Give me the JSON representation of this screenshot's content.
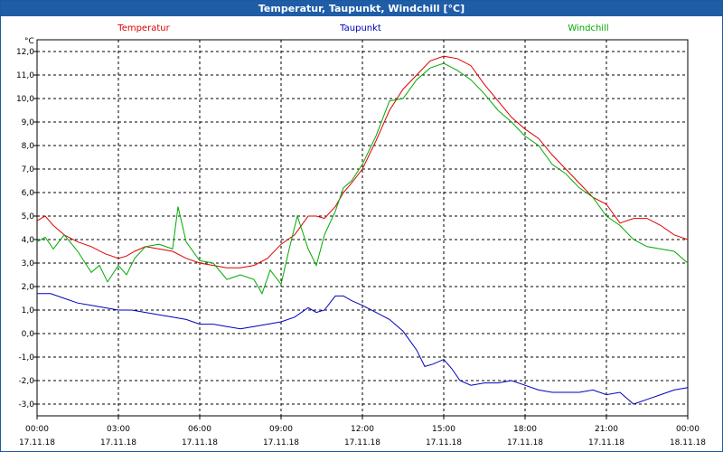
{
  "window": {
    "title": "Temperatur, Taupunkt, Windchill [°C]"
  },
  "colors": {
    "temperature": "#dd0000",
    "dewpoint": "#0000bb",
    "windchill": "#00aa00",
    "title_bg": "#1f5da6"
  },
  "chart_data": {
    "type": "line",
    "title": "Temperatur, Taupunkt, Windchill [°C]",
    "ylabel": "°C",
    "ylim": [
      -3.5,
      12.5
    ],
    "yticks": [
      "12,0",
      "11,0",
      "10,0",
      "9,0",
      "8,0",
      "7,0",
      "6,0",
      "5,0",
      "4,0",
      "3,0",
      "2,0",
      "1,0",
      "0,0",
      "-1,0",
      "-2,0",
      "-3,0"
    ],
    "xticks": [
      {
        "time": "00:00",
        "date": "17.11.18"
      },
      {
        "time": "03:00",
        "date": "17.11.18"
      },
      {
        "time": "06:00",
        "date": "17.11.18"
      },
      {
        "time": "09:00",
        "date": "17.11.18"
      },
      {
        "time": "12:00",
        "date": "17.11.18"
      },
      {
        "time": "15:00",
        "date": "17.11.18"
      },
      {
        "time": "18:00",
        "date": "17.11.18"
      },
      {
        "time": "21:00",
        "date": "17.11.18"
      },
      {
        "time": "00:00",
        "date": "18.11.18"
      }
    ],
    "grid": true,
    "legend_position": "top",
    "series": [
      {
        "name": "Temperatur",
        "color": "#dd0000",
        "x": [
          0,
          0.3,
          0.6,
          1,
          1.5,
          2,
          2.5,
          3,
          3.3,
          3.6,
          4,
          4.5,
          5,
          5.5,
          6,
          6.5,
          7,
          7.5,
          8,
          8.5,
          9,
          9.5,
          10,
          10.3,
          10.6,
          11,
          11.3,
          11.6,
          12,
          12.5,
          13,
          13.5,
          14,
          14.5,
          15,
          15.5,
          16,
          16.5,
          17,
          17.5,
          18,
          18.5,
          19,
          19.5,
          20,
          20.5,
          21,
          21.5,
          22,
          22.5,
          23,
          23.5,
          24
        ],
        "values": [
          4.8,
          5.0,
          4.6,
          4.2,
          3.9,
          3.7,
          3.4,
          3.2,
          3.3,
          3.5,
          3.7,
          3.6,
          3.5,
          3.2,
          3.0,
          2.9,
          2.8,
          2.8,
          2.9,
          3.2,
          3.8,
          4.2,
          5.0,
          5.0,
          4.9,
          5.4,
          6.0,
          6.4,
          7.0,
          8.2,
          9.5,
          10.4,
          11.0,
          11.6,
          11.8,
          11.7,
          11.4,
          10.6,
          9.9,
          9.2,
          8.7,
          8.3,
          7.6,
          7.0,
          6.4,
          5.8,
          5.5,
          4.7,
          4.9,
          4.9,
          4.6,
          4.2,
          4.0
        ]
      },
      {
        "name": "Taupunkt",
        "color": "#0000bb",
        "x": [
          0,
          0.5,
          1,
          1.5,
          2,
          2.5,
          3,
          3.5,
          4,
          4.5,
          5,
          5.5,
          6,
          6.5,
          7,
          7.5,
          8,
          8.5,
          9,
          9.5,
          10,
          10.3,
          10.6,
          11,
          11.3,
          11.6,
          12,
          12.5,
          13,
          13.5,
          14,
          14.3,
          14.6,
          15,
          15.3,
          15.6,
          16,
          16.5,
          17,
          17.5,
          18,
          18.5,
          19,
          19.5,
          20,
          20.5,
          21,
          21.5,
          22,
          22.5,
          23,
          23.5,
          24
        ],
        "values": [
          1.7,
          1.7,
          1.5,
          1.3,
          1.2,
          1.1,
          1.0,
          1.0,
          0.9,
          0.8,
          0.7,
          0.6,
          0.4,
          0.4,
          0.3,
          0.2,
          0.3,
          0.4,
          0.5,
          0.7,
          1.1,
          0.9,
          1.0,
          1.6,
          1.6,
          1.4,
          1.2,
          0.9,
          0.6,
          0.1,
          -0.7,
          -1.4,
          -1.3,
          -1.1,
          -1.5,
          -2.0,
          -2.2,
          -2.1,
          -2.1,
          -2.0,
          -2.2,
          -2.4,
          -2.5,
          -2.5,
          -2.5,
          -2.4,
          -2.6,
          -2.5,
          -3.0,
          -2.8,
          -2.6,
          -2.4,
          -2.3
        ]
      },
      {
        "name": "Windchill",
        "color": "#00aa00",
        "x": [
          0,
          0.3,
          0.6,
          1,
          1.5,
          2,
          2.3,
          2.6,
          3,
          3.3,
          3.6,
          4,
          4.5,
          5,
          5.2,
          5.5,
          6,
          6.5,
          7,
          7.5,
          8,
          8.3,
          8.6,
          9,
          9.3,
          9.6,
          10,
          10.3,
          10.6,
          11,
          11.3,
          11.6,
          12,
          12.5,
          13,
          13.5,
          14,
          14.5,
          15,
          15.5,
          16,
          16.5,
          17,
          17.5,
          18,
          18.5,
          19,
          19.5,
          20,
          20.5,
          21,
          21.5,
          22,
          22.5,
          23,
          23.5,
          24
        ],
        "values": [
          3.9,
          4.1,
          3.6,
          4.2,
          3.5,
          2.6,
          2.9,
          2.2,
          2.9,
          2.5,
          3.2,
          3.7,
          3.8,
          3.6,
          5.4,
          3.9,
          3.1,
          3.0,
          2.3,
          2.5,
          2.3,
          1.7,
          2.7,
          2.1,
          3.6,
          5.0,
          3.6,
          2.9,
          4.2,
          5.2,
          6.2,
          6.5,
          7.2,
          8.4,
          9.9,
          10.0,
          10.8,
          11.3,
          11.5,
          11.2,
          10.8,
          10.2,
          9.5,
          9.0,
          8.4,
          8.0,
          7.2,
          6.8,
          6.2,
          5.8,
          5.0,
          4.6,
          4.0,
          3.7,
          3.6,
          3.5,
          3.0
        ]
      }
    ]
  }
}
